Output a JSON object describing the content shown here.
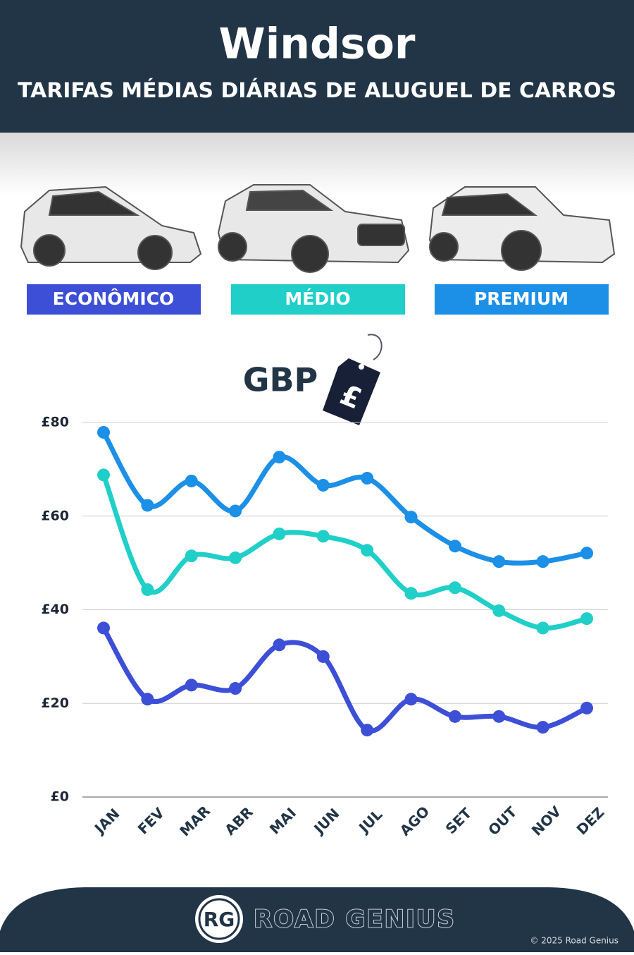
{
  "chart_data": {
    "type": "line",
    "title": "Windsor",
    "subtitle": "TARIFAS MÉDIAS DIÁRIAS DE ALUGUEL DE CARROS",
    "currency": "GBP",
    "currency_symbol": "£",
    "categories": [
      "JAN",
      "FEV",
      "MAR",
      "ABR",
      "MAI",
      "JUN",
      "JUL",
      "AGO",
      "SET",
      "OUT",
      "NOV",
      "DEZ"
    ],
    "series": [
      {
        "name": "ECONÔMICO",
        "color": "#3d4fd6",
        "values": [
          36.1,
          20.9,
          23.9,
          23.2,
          32.5,
          30.0,
          14.3,
          20.9,
          17.2,
          17.2,
          14.9,
          19.0
        ]
      },
      {
        "name": "MÉDIO",
        "color": "#1fcfc8",
        "values": [
          68.8,
          44.3,
          51.5,
          51.1,
          56.2,
          55.7,
          52.7,
          43.5,
          44.7,
          39.8,
          36.1,
          38.1
        ]
      },
      {
        "name": "PREMIUM",
        "color": "#1c8fe6",
        "values": [
          77.9,
          62.3,
          67.5,
          61.1,
          72.6,
          66.6,
          68.1,
          59.8,
          53.6,
          50.3,
          50.3,
          52.1
        ]
      }
    ],
    "ylim": [
      0,
      80
    ],
    "yticks": [
      {
        "value": 0,
        "label": "£0"
      },
      {
        "value": 20,
        "label": "£20"
      },
      {
        "value": 40,
        "label": "£40"
      },
      {
        "value": 60,
        "label": "£60"
      },
      {
        "value": 80,
        "label": "£80"
      }
    ],
    "grid": true,
    "footer": {
      "logo": "RG",
      "brand": "ROAD GENIUS",
      "copyright": "© 2025 Road Genius"
    }
  }
}
